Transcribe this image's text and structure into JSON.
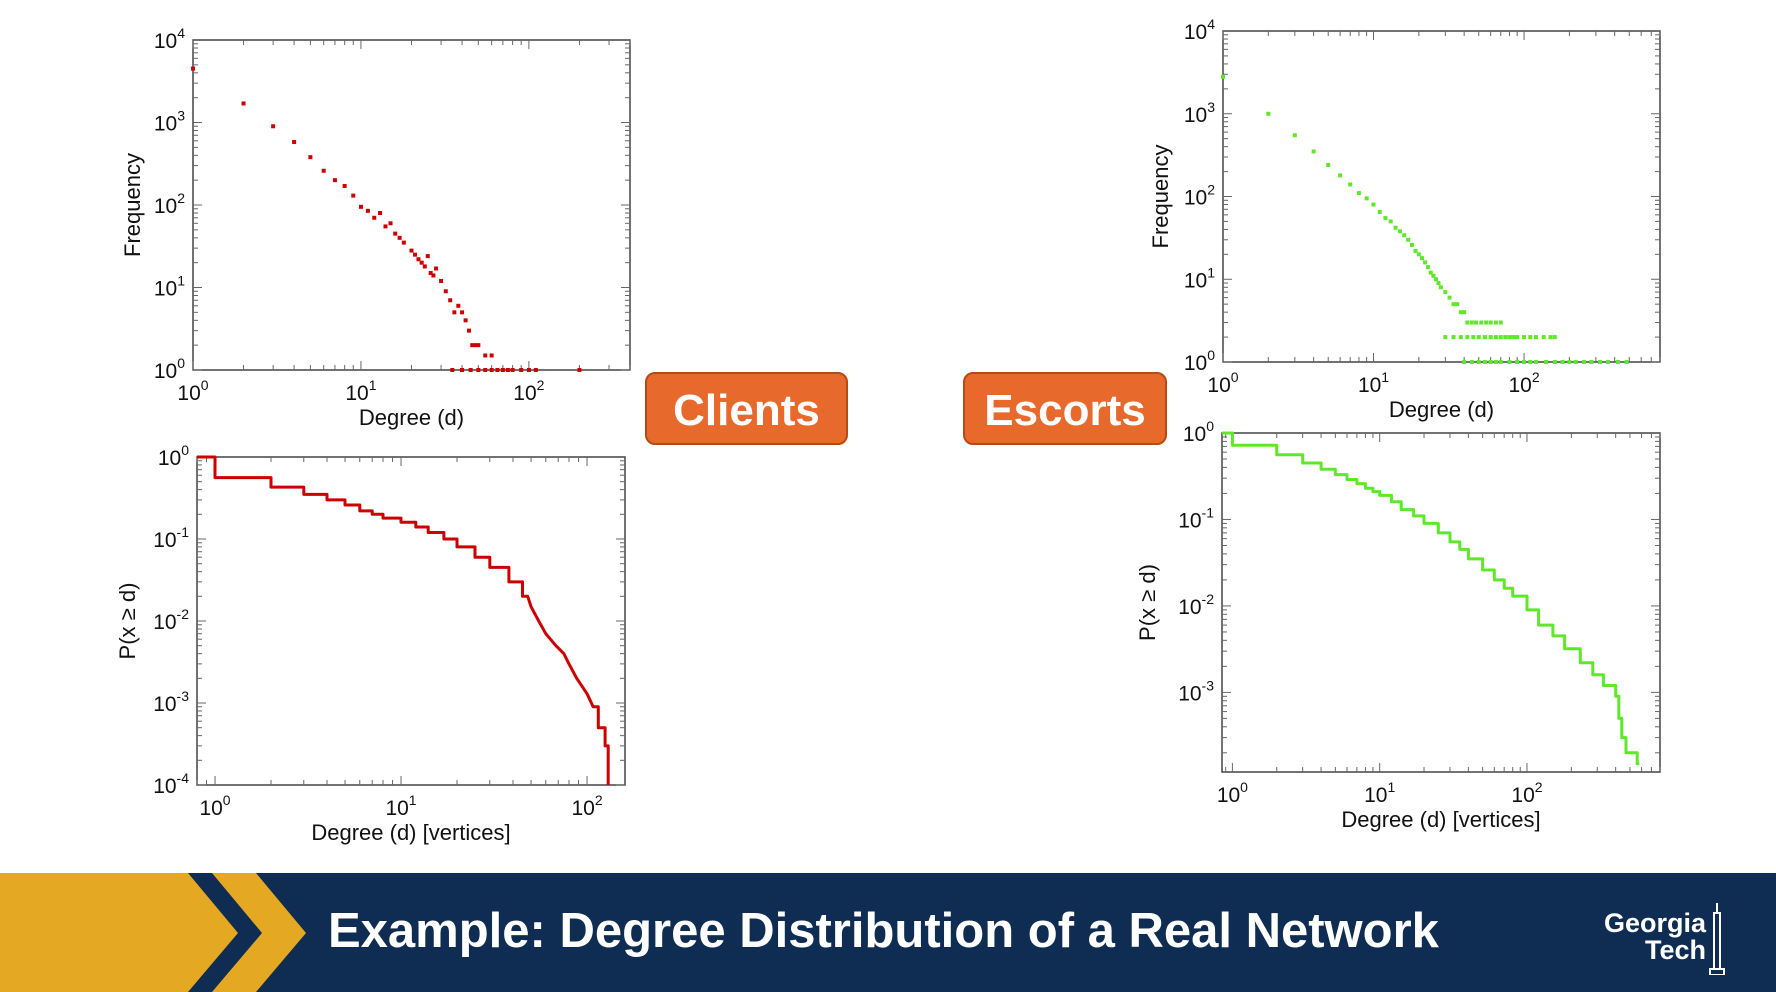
{
  "labels": {
    "clients": "Clients",
    "escorts": "Escorts"
  },
  "footer": {
    "title": "Example: Degree Distribution of a Real Network"
  },
  "logo": {
    "line1": "Georgia",
    "line2": "Tech"
  },
  "colors": {
    "clients": "#cc0000",
    "escorts": "#5ee82a",
    "label_bg": "#e8692c",
    "footer_bg": "#0f2d52",
    "chevron": "#e5a823"
  },
  "chart_data": [
    {
      "id": "clients-degree-frequency",
      "type": "scatter",
      "xscale": "log",
      "yscale": "log",
      "xlim": [
        1,
        400
      ],
      "ylim": [
        1,
        10000
      ],
      "xticks": [
        1,
        10,
        100
      ],
      "yticks": [
        1,
        10,
        100,
        1000,
        10000
      ],
      "xlabel": "Degree (d)",
      "ylabel": "Frequency",
      "color": "#cc0000",
      "points": [
        [
          1,
          4500
        ],
        [
          2,
          1700
        ],
        [
          3,
          900
        ],
        [
          4,
          580
        ],
        [
          5,
          380
        ],
        [
          6,
          260
        ],
        [
          7,
          200
        ],
        [
          8,
          170
        ],
        [
          9,
          130
        ],
        [
          10,
          95
        ],
        [
          11,
          85
        ],
        [
          12,
          70
        ],
        [
          13,
          80
        ],
        [
          14,
          55
        ],
        [
          15,
          60
        ],
        [
          16,
          45
        ],
        [
          17,
          40
        ],
        [
          18,
          35
        ],
        [
          20,
          28
        ],
        [
          21,
          25
        ],
        [
          22,
          22
        ],
        [
          23,
          20
        ],
        [
          24,
          18
        ],
        [
          25,
          24
        ],
        [
          26,
          15
        ],
        [
          27,
          14
        ],
        [
          28,
          17
        ],
        [
          30,
          12
        ],
        [
          32,
          9
        ],
        [
          34,
          7
        ],
        [
          36,
          5
        ],
        [
          38,
          6
        ],
        [
          40,
          5
        ],
        [
          42,
          4
        ],
        [
          44,
          3
        ],
        [
          46,
          2
        ],
        [
          48,
          2
        ],
        [
          50,
          2
        ],
        [
          55,
          1.5
        ],
        [
          60,
          1.5
        ],
        [
          35,
          1
        ],
        [
          40,
          1
        ],
        [
          45,
          1
        ],
        [
          50,
          1
        ],
        [
          55,
          1
        ],
        [
          60,
          1
        ],
        [
          65,
          1
        ],
        [
          70,
          1
        ],
        [
          75,
          1
        ],
        [
          80,
          1
        ],
        [
          90,
          1
        ],
        [
          100,
          1
        ],
        [
          110,
          1
        ],
        [
          200,
          1
        ]
      ]
    },
    {
      "id": "clients-ccdf",
      "type": "line",
      "step": true,
      "xscale": "log",
      "yscale": "log",
      "xlim": [
        0.8,
        160
      ],
      "ylim": [
        0.0001,
        1
      ],
      "xticks": [
        1,
        10,
        100
      ],
      "yticks": [
        0.0001,
        0.001,
        0.01,
        0.1,
        1
      ],
      "xlabel": "Degree (d) [vertices]",
      "ylabel": "P(x ≥ d)",
      "color": "#cc0000",
      "points": [
        [
          0.8,
          1
        ],
        [
          1,
          1
        ],
        [
          1,
          0.56
        ],
        [
          2,
          0.56
        ],
        [
          2,
          0.43
        ],
        [
          3,
          0.43
        ],
        [
          3,
          0.35
        ],
        [
          4,
          0.35
        ],
        [
          4,
          0.3
        ],
        [
          5,
          0.3
        ],
        [
          5,
          0.26
        ],
        [
          6,
          0.26
        ],
        [
          6,
          0.22
        ],
        [
          7,
          0.22
        ],
        [
          7,
          0.2
        ],
        [
          8,
          0.2
        ],
        [
          8,
          0.18
        ],
        [
          10,
          0.18
        ],
        [
          10,
          0.16
        ],
        [
          12,
          0.16
        ],
        [
          12,
          0.14
        ],
        [
          14,
          0.14
        ],
        [
          14,
          0.12
        ],
        [
          17,
          0.12
        ],
        [
          17,
          0.1
        ],
        [
          20,
          0.1
        ],
        [
          20,
          0.08
        ],
        [
          25,
          0.08
        ],
        [
          25,
          0.06
        ],
        [
          30,
          0.06
        ],
        [
          30,
          0.045
        ],
        [
          38,
          0.045
        ],
        [
          38,
          0.03
        ],
        [
          45,
          0.03
        ],
        [
          45,
          0.02
        ],
        [
          48,
          0.02
        ],
        [
          50,
          0.015
        ],
        [
          55,
          0.01
        ],
        [
          60,
          0.007
        ],
        [
          68,
          0.005
        ],
        [
          75,
          0.004
        ],
        [
          80,
          0.003
        ],
        [
          88,
          0.002
        ],
        [
          100,
          0.0013
        ],
        [
          108,
          0.0009
        ],
        [
          115,
          0.0009
        ],
        [
          115,
          0.0005
        ],
        [
          125,
          0.0005
        ],
        [
          125,
          0.0003
        ],
        [
          130,
          0.0003
        ],
        [
          130,
          0.0001
        ]
      ]
    },
    {
      "id": "escorts-degree-frequency",
      "type": "scatter",
      "xscale": "log",
      "yscale": "log",
      "xlim": [
        1,
        800
      ],
      "ylim": [
        1,
        10000
      ],
      "xticks": [
        1,
        10,
        100
      ],
      "yticks": [
        1,
        10,
        100,
        1000,
        10000
      ],
      "xlabel": "Degree (d)",
      "ylabel": "Frequency",
      "color": "#5ee82a",
      "points": [
        [
          1,
          2800
        ],
        [
          2,
          1000
        ],
        [
          3,
          550
        ],
        [
          4,
          350
        ],
        [
          5,
          240
        ],
        [
          6,
          180
        ],
        [
          7,
          140
        ],
        [
          8,
          110
        ],
        [
          9,
          95
        ],
        [
          10,
          80
        ],
        [
          11,
          65
        ],
        [
          12,
          55
        ],
        [
          13,
          50
        ],
        [
          14,
          42
        ],
        [
          15,
          38
        ],
        [
          16,
          34
        ],
        [
          17,
          30
        ],
        [
          18,
          26
        ],
        [
          19,
          22
        ],
        [
          20,
          20
        ],
        [
          21,
          18
        ],
        [
          22,
          16
        ],
        [
          23,
          14
        ],
        [
          24,
          12
        ],
        [
          25,
          11
        ],
        [
          26,
          10
        ],
        [
          27,
          9
        ],
        [
          28,
          8
        ],
        [
          30,
          7
        ],
        [
          32,
          6
        ],
        [
          34,
          5
        ],
        [
          36,
          5
        ],
        [
          38,
          4
        ],
        [
          40,
          4
        ],
        [
          42,
          3
        ],
        [
          45,
          3
        ],
        [
          48,
          3
        ],
        [
          52,
          3
        ],
        [
          56,
          3
        ],
        [
          60,
          3
        ],
        [
          65,
          3
        ],
        [
          70,
          3
        ],
        [
          30,
          2
        ],
        [
          34,
          2
        ],
        [
          38,
          2
        ],
        [
          42,
          2
        ],
        [
          46,
          2
        ],
        [
          50,
          2
        ],
        [
          55,
          2
        ],
        [
          60,
          2
        ],
        [
          65,
          2
        ],
        [
          70,
          2
        ],
        [
          75,
          2
        ],
        [
          80,
          2
        ],
        [
          85,
          2
        ],
        [
          90,
          2
        ],
        [
          100,
          2
        ],
        [
          110,
          2
        ],
        [
          120,
          2
        ],
        [
          135,
          2
        ],
        [
          150,
          2
        ],
        [
          160,
          2
        ],
        [
          40,
          1
        ],
        [
          45,
          1
        ],
        [
          50,
          1
        ],
        [
          55,
          1
        ],
        [
          60,
          1
        ],
        [
          65,
          1
        ],
        [
          70,
          1
        ],
        [
          80,
          1
        ],
        [
          90,
          1
        ],
        [
          100,
          1
        ],
        [
          110,
          1
        ],
        [
          120,
          1
        ],
        [
          140,
          1
        ],
        [
          160,
          1
        ],
        [
          180,
          1
        ],
        [
          200,
          1
        ],
        [
          220,
          1
        ],
        [
          250,
          1
        ],
        [
          280,
          1
        ],
        [
          320,
          1
        ],
        [
          360,
          1
        ],
        [
          420,
          1
        ],
        [
          480,
          1
        ]
      ]
    },
    {
      "id": "escorts-ccdf",
      "type": "line",
      "step": true,
      "xscale": "log",
      "yscale": "log",
      "xlim": [
        0.85,
        800
      ],
      "ylim": [
        0.00012,
        1
      ],
      "xticks": [
        1,
        10,
        100
      ],
      "yticks": [
        0.001,
        0.01,
        0.1,
        1
      ],
      "xlabel": "Degree (d) [vertices]",
      "ylabel": "P(x ≥ d)",
      "color": "#5ee82a",
      "points": [
        [
          0.85,
          1
        ],
        [
          1,
          1
        ],
        [
          1,
          0.72
        ],
        [
          2,
          0.72
        ],
        [
          2,
          0.56
        ],
        [
          3,
          0.56
        ],
        [
          3,
          0.45
        ],
        [
          4,
          0.45
        ],
        [
          4,
          0.38
        ],
        [
          5,
          0.38
        ],
        [
          5,
          0.33
        ],
        [
          6,
          0.33
        ],
        [
          6,
          0.29
        ],
        [
          7,
          0.29
        ],
        [
          7,
          0.26
        ],
        [
          8,
          0.26
        ],
        [
          8,
          0.23
        ],
        [
          9,
          0.23
        ],
        [
          9,
          0.21
        ],
        [
          10,
          0.21
        ],
        [
          10,
          0.19
        ],
        [
          12,
          0.19
        ],
        [
          12,
          0.16
        ],
        [
          14,
          0.16
        ],
        [
          14,
          0.13
        ],
        [
          17,
          0.13
        ],
        [
          17,
          0.11
        ],
        [
          20,
          0.11
        ],
        [
          20,
          0.09
        ],
        [
          25,
          0.09
        ],
        [
          25,
          0.07
        ],
        [
          30,
          0.07
        ],
        [
          30,
          0.055
        ],
        [
          35,
          0.055
        ],
        [
          35,
          0.045
        ],
        [
          40,
          0.045
        ],
        [
          40,
          0.035
        ],
        [
          50,
          0.035
        ],
        [
          50,
          0.026
        ],
        [
          60,
          0.026
        ],
        [
          60,
          0.02
        ],
        [
          70,
          0.02
        ],
        [
          70,
          0.016
        ],
        [
          80,
          0.016
        ],
        [
          80,
          0.013
        ],
        [
          100,
          0.013
        ],
        [
          100,
          0.009
        ],
        [
          120,
          0.009
        ],
        [
          120,
          0.006
        ],
        [
          150,
          0.006
        ],
        [
          150,
          0.0045
        ],
        [
          180,
          0.0045
        ],
        [
          180,
          0.0032
        ],
        [
          230,
          0.0032
        ],
        [
          230,
          0.0022
        ],
        [
          280,
          0.0022
        ],
        [
          280,
          0.0016
        ],
        [
          330,
          0.0016
        ],
        [
          330,
          0.0012
        ],
        [
          400,
          0.0012
        ],
        [
          400,
          0.0009
        ],
        [
          420,
          0.0009
        ],
        [
          420,
          0.0005
        ],
        [
          440,
          0.0005
        ],
        [
          440,
          0.0003
        ],
        [
          470,
          0.0003
        ],
        [
          470,
          0.0002
        ],
        [
          560,
          0.0002
        ],
        [
          560,
          0.00015
        ],
        [
          580,
          0.00015
        ]
      ]
    }
  ]
}
